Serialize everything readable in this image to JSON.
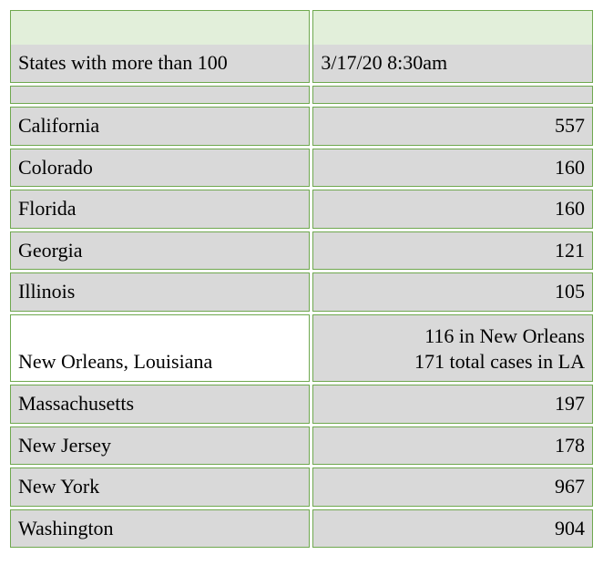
{
  "header": {
    "left": "States with more than 100",
    "right": "3/17/20 8:30am"
  },
  "rows": [
    {
      "state": "California",
      "value": "557",
      "leftBg": "data-bg",
      "rightBg": "data-bg",
      "multiline": false
    },
    {
      "state": "Colorado",
      "value": "160",
      "leftBg": "data-bg",
      "rightBg": "data-bg",
      "multiline": false
    },
    {
      "state": "Florida",
      "value": "160",
      "leftBg": "data-bg",
      "rightBg": "data-bg",
      "multiline": false
    },
    {
      "state": "Georgia",
      "value": "121",
      "leftBg": "data-bg",
      "rightBg": "data-bg",
      "multiline": false
    },
    {
      "state": "Illinois",
      "value": "105",
      "leftBg": "data-bg",
      "rightBg": "data-bg",
      "multiline": false
    },
    {
      "state": "New Orleans, Louisiana",
      "value": "116 in New Orleans\n171 total cases in LA",
      "leftBg": "white-bg",
      "rightBg": "data-bg",
      "multiline": true
    },
    {
      "state": "Massachusetts",
      "value": "197",
      "leftBg": "data-bg",
      "rightBg": "data-bg",
      "multiline": false
    },
    {
      "state": "New Jersey",
      "value": "178",
      "leftBg": "data-bg",
      "rightBg": "data-bg",
      "multiline": false
    },
    {
      "state": "New York",
      "value": "967",
      "leftBg": "data-bg",
      "rightBg": "data-bg",
      "multiline": false
    },
    {
      "state": "Washington",
      "value": "904",
      "leftBg": "data-bg",
      "rightBg": "data-bg",
      "multiline": false
    }
  ],
  "colors": {
    "border": "#6fa84f",
    "headerBg": "#e2efda",
    "dataBg": "#d9d9d9",
    "whiteBg": "#ffffff",
    "text": "#000000"
  }
}
